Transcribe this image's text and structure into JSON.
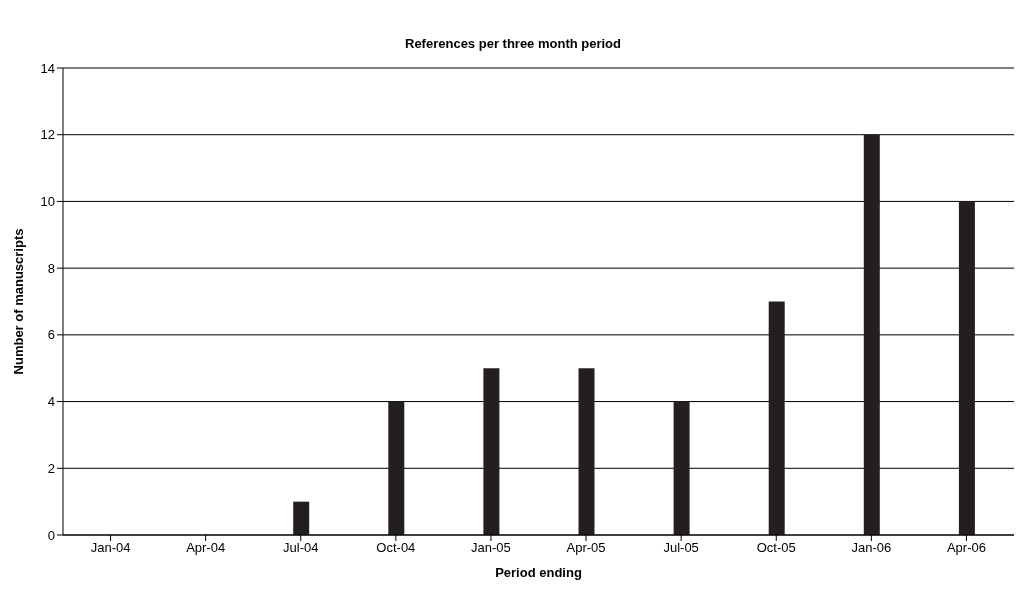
{
  "chart_data": {
    "type": "bar",
    "title": "References per three month period",
    "xlabel": "Period ending",
    "ylabel": "Number of manuscripts",
    "categories": [
      "Jan-04",
      "Apr-04",
      "Jul-04",
      "Oct-04",
      "Jan-05",
      "Apr-05",
      "Jul-05",
      "Oct-05",
      "Jan-06",
      "Apr-06"
    ],
    "values": [
      0,
      0,
      1,
      4,
      5,
      5,
      4,
      7,
      12,
      10
    ],
    "color": "#231f20",
    "ylim": [
      0,
      14
    ],
    "yticks": [
      0,
      2,
      4,
      6,
      8,
      10,
      12,
      14
    ],
    "grid": "y"
  }
}
